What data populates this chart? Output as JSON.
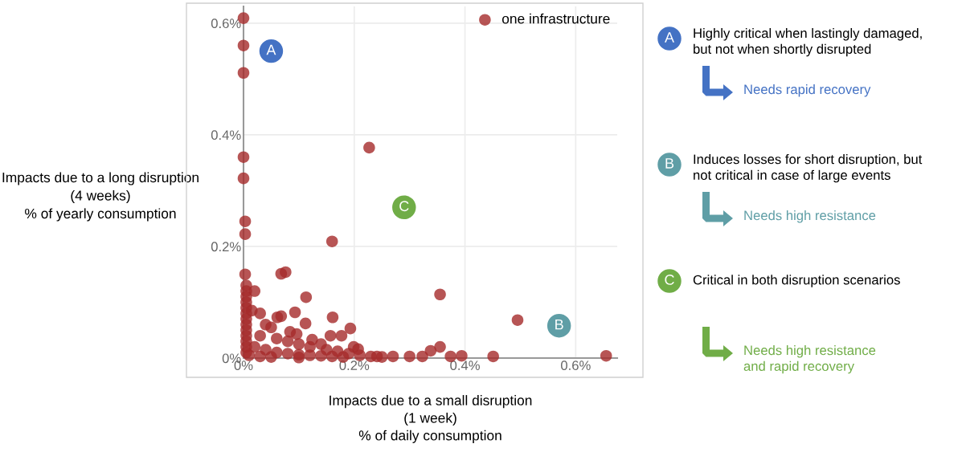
{
  "chart_data": {
    "type": "scatter",
    "xlabel": "Impacts due to a small disruption\n(1 week)\n% of daily consumption",
    "ylabel": "Impacts due to a long disruption\n(4 weeks)\n% of yearly consumption",
    "xlim": [
      0,
      0.675
    ],
    "ylim": [
      0,
      0.63
    ],
    "xticks": [
      {
        "value": 0,
        "label": "0%"
      },
      {
        "value": 0.2,
        "label": "0.2%"
      },
      {
        "value": 0.4,
        "label": "0.4%"
      },
      {
        "value": 0.6,
        "label": "0.6%"
      }
    ],
    "yticks": [
      {
        "value": 0,
        "label": "0%"
      },
      {
        "value": 0.2,
        "label": "0.2%"
      },
      {
        "value": 0.4,
        "label": "0.4%"
      },
      {
        "value": 0.6,
        "label": "0.6%"
      }
    ],
    "grid": true,
    "legend": "top right",
    "marker": "circle",
    "series": [
      {
        "name": "one infrastructure",
        "color": "#a52a2a",
        "x": [
          0,
          0,
          0,
          0,
          0,
          0.003,
          0.003,
          0.227,
          0.16,
          0.076,
          0.068,
          0.003,
          0.113,
          0.093,
          0.068,
          0.061,
          0.161,
          0.112,
          0.193,
          0.084,
          0.096,
          0.157,
          0.177,
          0.124,
          0.199,
          0.207,
          0.355,
          0.495,
          0.655,
          0.451,
          0.394,
          0.355,
          0.338,
          0.374,
          0.323,
          0.3,
          0.27,
          0.241,
          0.005,
          0.005,
          0.005,
          0.005,
          0.005,
          0.005,
          0.005,
          0.005,
          0.005,
          0.005,
          0.005,
          0.005,
          0.005,
          0.02,
          0.015,
          0.03,
          0.04,
          0.05,
          0.03,
          0.06,
          0.08,
          0.1,
          0.12,
          0.14,
          0.15,
          0.17,
          0.19,
          0.21,
          0.23,
          0.25,
          0.02,
          0.04,
          0.06,
          0.08,
          0.1,
          0.12,
          0.14,
          0.16,
          0.18,
          0.05,
          0.1,
          0.01,
          0.03
        ],
        "values": [
          0.609,
          0.56,
          0.511,
          0.36,
          0.322,
          0.245,
          0.222,
          0.377,
          0.209,
          0.154,
          0.151,
          0.15,
          0.109,
          0.082,
          0.075,
          0.073,
          0.073,
          0.062,
          0.053,
          0.047,
          0.043,
          0.04,
          0.04,
          0.033,
          0.02,
          0.016,
          0.114,
          0.068,
          0.004,
          0.003,
          0.004,
          0.02,
          0.013,
          0.003,
          0.003,
          0.003,
          0.003,
          0.003,
          0.13,
          0.12,
          0.11,
          0.1,
          0.09,
          0.08,
          0.07,
          0.06,
          0.05,
          0.04,
          0.03,
          0.02,
          0.01,
          0.12,
          0.085,
          0.08,
          0.06,
          0.055,
          0.04,
          0.035,
          0.03,
          0.025,
          0.02,
          0.025,
          0.015,
          0.012,
          0.008,
          0.005,
          0.003,
          0.002,
          0.02,
          0.015,
          0.01,
          0.008,
          0.006,
          0.005,
          0.004,
          0.003,
          0.002,
          0.002,
          0.001,
          0.005,
          0.003
        ]
      }
    ],
    "annotations": [
      {
        "text": "A",
        "x": 0.05,
        "y": 0.55
      },
      {
        "text": "C",
        "x": 0.29,
        "y": 0.27
      },
      {
        "text": "B",
        "x": 0.57,
        "y": 0.058
      },
      "A",
      "Highly critical when lastingly damaged,\nbut not when shortly disrupted",
      "Needs rapid recovery",
      "B",
      "Induces losses for short disruption, but\nnot critical in case of large events",
      "Needs high resistance",
      "C",
      "Critical in both disruption scenarios",
      "Needs high resistance\nand rapid recovery"
    ]
  }
}
